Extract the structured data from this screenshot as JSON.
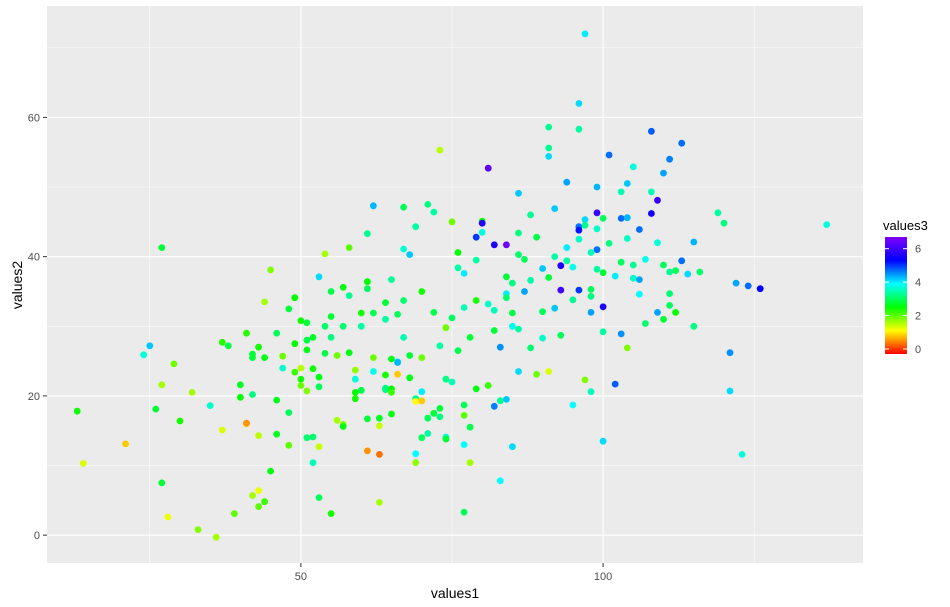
{
  "chart_data": {
    "type": "scatter",
    "xlabel": "values1",
    "ylabel": "values2",
    "xlim": [
      8,
      143
    ],
    "ylim": [
      -4,
      76
    ],
    "x_ticks": [
      50,
      100
    ],
    "y_ticks": [
      0,
      20,
      40,
      60
    ],
    "x_tick_labels": [
      "50",
      "100"
    ],
    "y_tick_labels": [
      "0",
      "20",
      "40",
      "60"
    ],
    "grid": true,
    "background": "#ebebeb",
    "color_scale": {
      "title": "values3",
      "min": -0.3,
      "max": 6.7,
      "ticks": [
        0,
        2,
        4,
        6
      ],
      "tick_labels": [
        "0",
        "2",
        "4",
        "6"
      ],
      "colors": [
        "#ff0000",
        "#ffff00",
        "#00ff00",
        "#00ffff",
        "#0000ff",
        "#8000ff"
      ],
      "position": "right"
    },
    "points": [
      [
        13,
        17.8,
        2.4
      ],
      [
        14,
        10.3,
        1.3
      ],
      [
        21,
        13.1,
        0.8
      ],
      [
        24,
        25.9,
        3.7
      ],
      [
        25,
        27.2,
        4.2
      ],
      [
        26,
        18.1,
        2.8
      ],
      [
        27,
        21.6,
        1.6
      ],
      [
        27,
        41.3,
        2.8
      ],
      [
        27,
        7.5,
        2.8
      ],
      [
        28,
        2.6,
        1.2
      ],
      [
        29,
        24.6,
        1.9
      ],
      [
        30,
        16.4,
        2.4
      ],
      [
        32,
        20.5,
        1.6
      ],
      [
        33,
        0.8,
        1.8
      ],
      [
        35,
        18.6,
        3.6
      ],
      [
        36,
        -0.3,
        1.6
      ],
      [
        37,
        27.7,
        2.3
      ],
      [
        37,
        15.1,
        1.3
      ],
      [
        38,
        27.2,
        2.9
      ],
      [
        39,
        3.1,
        2.0
      ],
      [
        40,
        19.8,
        2.5
      ],
      [
        40,
        21.6,
        2.7
      ],
      [
        41,
        16.0,
        0.9
      ],
      [
        41,
        16.1,
        0.5
      ],
      [
        41,
        29.0,
        2.3
      ],
      [
        42,
        26.0,
        2.8
      ],
      [
        42,
        25.5,
        2.8
      ],
      [
        42,
        5.7,
        1.6
      ],
      [
        42,
        20.2,
        3.2
      ],
      [
        43,
        14.3,
        1.5
      ],
      [
        43,
        27.0,
        2.4
      ],
      [
        43,
        6.4,
        1.2
      ],
      [
        43,
        4.1,
        2.0
      ],
      [
        44,
        4.8,
        2.2
      ],
      [
        44,
        25.5,
        2.6
      ],
      [
        44,
        33.5,
        1.6
      ],
      [
        45,
        9.2,
        2.6
      ],
      [
        45,
        38.1,
        1.8
      ],
      [
        46,
        29.0,
        3.0
      ],
      [
        46,
        14.5,
        2.7
      ],
      [
        46,
        19.4,
        2.6
      ],
      [
        47,
        25.7,
        1.9
      ],
      [
        47,
        24.0,
        3.6
      ],
      [
        48,
        17.6,
        3.0
      ],
      [
        48,
        32.5,
        2.8
      ],
      [
        48,
        12.9,
        2.0
      ],
      [
        49,
        27.5,
        2.5
      ],
      [
        49,
        34.1,
        2.5
      ],
      [
        49,
        23.4,
        2.2
      ],
      [
        50,
        22.4,
        2.4
      ],
      [
        50,
        30.8,
        2.4
      ],
      [
        50,
        24.0,
        1.5
      ],
      [
        50,
        21.5,
        1.9
      ],
      [
        51,
        20.7,
        1.8
      ],
      [
        51,
        26.6,
        2.6
      ],
      [
        51,
        28.0,
        2.9
      ],
      [
        51,
        14.0,
        3.1
      ],
      [
        51,
        30.5,
        2.8
      ],
      [
        52,
        14.1,
        3.1
      ],
      [
        52,
        10.4,
        3.5
      ],
      [
        52,
        28.4,
        2.7
      ],
      [
        52,
        23.9,
        2.4
      ],
      [
        53,
        21.3,
        3.0
      ],
      [
        53,
        37.1,
        4.1
      ],
      [
        53,
        12.7,
        1.4
      ],
      [
        53,
        5.4,
        3.0
      ],
      [
        53,
        22.7,
        2.6
      ],
      [
        54,
        40.4,
        1.6
      ],
      [
        54,
        30.0,
        3.1
      ],
      [
        54,
        26.1,
        2.9
      ],
      [
        55,
        31.4,
        2.8
      ],
      [
        55,
        35.0,
        2.9
      ],
      [
        55,
        3.1,
        2.4
      ],
      [
        55,
        28.4,
        3.2
      ],
      [
        56,
        16.5,
        1.6
      ],
      [
        56,
        25.8,
        1.9
      ],
      [
        57,
        15.9,
        1.8
      ],
      [
        57,
        30.0,
        3.1
      ],
      [
        57,
        35.6,
        2.6
      ],
      [
        57,
        15.6,
        2.6
      ],
      [
        58,
        41.3,
        2.0
      ],
      [
        58,
        34.4,
        3.3
      ],
      [
        58,
        26.2,
        2.6
      ],
      [
        59,
        22.4,
        3.7
      ],
      [
        59,
        23.7,
        1.7
      ],
      [
        59,
        20.5,
        2.5
      ],
      [
        59,
        19.6,
        2.4
      ],
      [
        60,
        30.0,
        3.4
      ],
      [
        60,
        31.9,
        2.4
      ],
      [
        60,
        20.8,
        2.9
      ],
      [
        61,
        36.4,
        2.5
      ],
      [
        61,
        35.4,
        3.0
      ],
      [
        61,
        43.3,
        3.3
      ],
      [
        61,
        12.1,
        0.5
      ],
      [
        61,
        16.7,
        2.8
      ],
      [
        62,
        47.3,
        4.3
      ],
      [
        62,
        25.5,
        1.9
      ],
      [
        62,
        23.5,
        3.8
      ],
      [
        62,
        31.9,
        2.9
      ],
      [
        63,
        4.7,
        1.6
      ],
      [
        63,
        16.8,
        2.7
      ],
      [
        63,
        15.7,
        1.4
      ],
      [
        63,
        11.6,
        0.3
      ],
      [
        64,
        31.0,
        3.4
      ],
      [
        64,
        23.0,
        2.4
      ],
      [
        64,
        33.4,
        2.8
      ],
      [
        64,
        20.9,
        3.1
      ],
      [
        64,
        21.1,
        3.2
      ],
      [
        65,
        36.7,
        3.3
      ],
      [
        65,
        25.3,
        2.6
      ],
      [
        65,
        21.0,
        2.5
      ],
      [
        65,
        20.5,
        2.2
      ],
      [
        65,
        17.4,
        2.6
      ],
      [
        66,
        24.9,
        4.0
      ],
      [
        66,
        24.8,
        4.3
      ],
      [
        66,
        31.7,
        3.0
      ],
      [
        66,
        23.1,
        0.8
      ],
      [
        67,
        41.1,
        3.7
      ],
      [
        67,
        28.4,
        3.5
      ],
      [
        67,
        33.7,
        3.1
      ],
      [
        67,
        47.1,
        3.0
      ],
      [
        68,
        22.6,
        2.6
      ],
      [
        68,
        25.8,
        2.8
      ],
      [
        68,
        40.3,
        4.2
      ],
      [
        69,
        44.3,
        3.4
      ],
      [
        69,
        11.7,
        3.9
      ],
      [
        69,
        10.4,
        1.7
      ],
      [
        69,
        19.6,
        3.2
      ],
      [
        69,
        19.2,
        1.1
      ],
      [
        70,
        14.0,
        3.0
      ],
      [
        70,
        35.0,
        2.4
      ],
      [
        70,
        25.5,
        1.9
      ],
      [
        70,
        19.3,
        0.8
      ],
      [
        70,
        20.6,
        4.0
      ],
      [
        71,
        47.5,
        3.2
      ],
      [
        71,
        14.6,
        3.4
      ],
      [
        71,
        16.8,
        3.0
      ],
      [
        72,
        17.5,
        2.8
      ],
      [
        72,
        32.0,
        2.9
      ],
      [
        72,
        46.4,
        3.4
      ],
      [
        73,
        18.2,
        2.8
      ],
      [
        73,
        27.2,
        3.4
      ],
      [
        73,
        55.3,
        1.5
      ],
      [
        73,
        17.0,
        3.2
      ],
      [
        74,
        29.8,
        1.9
      ],
      [
        74,
        22.4,
        3.2
      ],
      [
        74,
        14.1,
        3.6
      ],
      [
        74,
        13.8,
        2.8
      ],
      [
        75,
        45.0,
        1.9
      ],
      [
        75,
        22.0,
        3.5
      ],
      [
        75,
        31.2,
        3.0
      ],
      [
        76,
        40.6,
        2.5
      ],
      [
        76,
        26.5,
        2.9
      ],
      [
        76,
        38.4,
        3.4
      ],
      [
        77,
        18.7,
        3.0
      ],
      [
        77,
        32.7,
        3.5
      ],
      [
        77,
        37.6,
        4.0
      ],
      [
        77,
        3.3,
        3.0
      ],
      [
        77,
        17.2,
        2.0
      ],
      [
        77,
        13.0,
        3.9
      ],
      [
        78,
        28.4,
        2.8
      ],
      [
        78,
        15.5,
        2.9
      ],
      [
        78,
        10.4,
        1.6
      ],
      [
        79,
        39.5,
        3.4
      ],
      [
        79,
        33.7,
        2.4
      ],
      [
        79,
        21.0,
        2.6
      ],
      [
        79,
        42.8,
        5.0
      ],
      [
        80,
        45.1,
        2.4
      ],
      [
        80,
        44.8,
        5.7
      ],
      [
        80,
        43.5,
        3.7
      ],
      [
        81,
        33.2,
        3.6
      ],
      [
        81,
        21.5,
        2.2
      ],
      [
        81,
        52.7,
        6.3
      ],
      [
        82,
        32.3,
        3.5
      ],
      [
        82,
        29.4,
        2.8
      ],
      [
        82,
        18.5,
        4.6
      ],
      [
        82,
        41.7,
        5.6
      ],
      [
        83,
        7.8,
        3.9
      ],
      [
        83,
        27.0,
        4.5
      ],
      [
        83,
        19.3,
        3.3
      ],
      [
        84,
        34.7,
        4.0
      ],
      [
        84,
        34.1,
        3.1
      ],
      [
        84,
        19.5,
        4.2
      ],
      [
        84,
        37.1,
        2.8
      ],
      [
        84,
        41.7,
        6.5
      ],
      [
        85,
        31.9,
        2.9
      ],
      [
        85,
        36.2,
        3.2
      ],
      [
        85,
        30.0,
        3.8
      ],
      [
        85,
        12.7,
        4.1
      ],
      [
        86,
        49.1,
        4.2
      ],
      [
        86,
        23.5,
        4.1
      ],
      [
        86,
        29.6,
        3.4
      ],
      [
        86,
        43.4,
        3.2
      ],
      [
        86,
        40.3,
        3.1
      ],
      [
        87,
        39.6,
        3.0
      ],
      [
        87,
        35.0,
        4.4
      ],
      [
        88,
        46.0,
        3.3
      ],
      [
        88,
        26.9,
        3.1
      ],
      [
        88,
        36.6,
        3.4
      ],
      [
        89,
        23.1,
        1.9
      ],
      [
        89,
        42.8,
        2.9
      ],
      [
        90,
        38.3,
        4.2
      ],
      [
        90,
        32.1,
        3.0
      ],
      [
        90,
        28.3,
        3.6
      ],
      [
        91,
        23.5,
        1.3
      ],
      [
        91,
        37.0,
        2.8
      ],
      [
        91,
        58.6,
        3.3
      ],
      [
        91,
        55.6,
        3.3
      ],
      [
        91,
        54.4,
        4.1
      ],
      [
        92,
        46.9,
        4.2
      ],
      [
        92,
        40.0,
        3.4
      ],
      [
        92,
        32.6,
        4.2
      ],
      [
        93,
        38.7,
        5.6
      ],
      [
        93,
        35.2,
        6.0
      ],
      [
        93,
        28.7,
        3.0
      ],
      [
        94,
        50.7,
        4.4
      ],
      [
        94,
        41.3,
        4.0
      ],
      [
        94,
        39.4,
        3.4
      ],
      [
        95,
        38.5,
        3.8
      ],
      [
        95,
        33.8,
        3.3
      ],
      [
        95,
        18.7,
        3.9
      ],
      [
        96,
        62.0,
        4.1
      ],
      [
        96,
        58.3,
        3.4
      ],
      [
        96,
        42.5,
        3.6
      ],
      [
        96,
        35.2,
        5.0
      ],
      [
        96,
        44.3,
        4.7
      ],
      [
        96,
        43.8,
        5.2
      ],
      [
        97,
        22.3,
        1.8
      ],
      [
        97,
        45.3,
        4.1
      ],
      [
        97,
        72.0,
        4.0
      ],
      [
        97,
        44.5,
        3.3
      ],
      [
        98,
        40.6,
        3.5
      ],
      [
        98,
        35.3,
        3.0
      ],
      [
        98,
        32.0,
        4.4
      ],
      [
        98,
        34.3,
        3.2
      ],
      [
        98,
        20.6,
        3.5
      ],
      [
        99,
        44.0,
        3.6
      ],
      [
        99,
        38.2,
        3.4
      ],
      [
        99,
        41.0,
        4.7
      ],
      [
        99,
        50.0,
        4.3
      ],
      [
        99,
        46.3,
        5.9
      ],
      [
        100,
        37.7,
        2.8
      ],
      [
        100,
        45.5,
        3.0
      ],
      [
        100,
        13.5,
        4.1
      ],
      [
        100,
        32.8,
        5.6
      ],
      [
        100,
        29.2,
        3.4
      ],
      [
        101,
        54.6,
        4.7
      ],
      [
        101,
        41.9,
        3.2
      ],
      [
        102,
        21.7,
        4.8
      ],
      [
        102,
        37.2,
        4.0
      ],
      [
        103,
        39.2,
        3.0
      ],
      [
        103,
        45.5,
        4.7
      ],
      [
        103,
        49.3,
        3.5
      ],
      [
        103,
        28.9,
        4.5
      ],
      [
        104,
        45.6,
        4.3
      ],
      [
        104,
        50.5,
        4.2
      ],
      [
        104,
        42.6,
        3.6
      ],
      [
        104,
        26.9,
        1.8
      ],
      [
        105,
        36.9,
        3.6
      ],
      [
        105,
        38.8,
        3.3
      ],
      [
        105,
        52.9,
        3.7
      ],
      [
        106,
        36.7,
        4.4
      ],
      [
        106,
        43.9,
        4.7
      ],
      [
        106,
        34.6,
        3.9
      ],
      [
        107,
        30.4,
        3.1
      ],
      [
        107,
        39.6,
        3.8
      ],
      [
        108,
        49.3,
        3.5
      ],
      [
        108,
        58.0,
        4.8
      ],
      [
        108,
        46.2,
        5.5
      ],
      [
        109,
        42.0,
        3.7
      ],
      [
        109,
        48.1,
        5.9
      ],
      [
        109,
        32.0,
        4.4
      ],
      [
        110,
        31.0,
        2.8
      ],
      [
        110,
        38.8,
        3.0
      ],
      [
        110,
        52.0,
        4.4
      ],
      [
        111,
        37.8,
        3.3
      ],
      [
        111,
        54.0,
        4.6
      ],
      [
        111,
        33.0,
        3.0
      ],
      [
        111,
        34.7,
        3.1
      ],
      [
        112,
        32.0,
        2.5
      ],
      [
        112,
        38.0,
        3.0
      ],
      [
        113,
        56.3,
        4.7
      ],
      [
        113,
        39.4,
        4.7
      ],
      [
        114,
        37.5,
        4.1
      ],
      [
        115,
        30.0,
        3.2
      ],
      [
        115,
        42.1,
        4.3
      ],
      [
        116,
        37.8,
        3.1
      ],
      [
        119,
        46.3,
        3.4
      ],
      [
        120,
        44.8,
        3.2
      ],
      [
        121,
        26.2,
        4.5
      ],
      [
        121,
        20.7,
        4.1
      ],
      [
        122,
        36.2,
        4.4
      ],
      [
        123,
        11.6,
        3.7
      ],
      [
        124,
        35.8,
        4.7
      ],
      [
        126,
        35.4,
        5.3
      ],
      [
        137,
        44.6,
        3.7
      ]
    ]
  }
}
